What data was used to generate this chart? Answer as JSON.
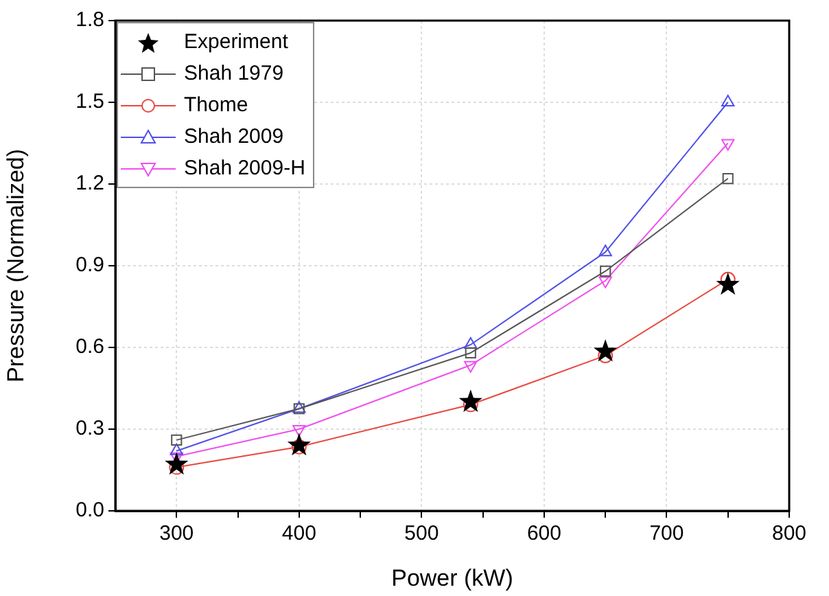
{
  "chart_data": {
    "type": "line",
    "xlabel": "Power (kW)",
    "ylabel": "Pressure (Normalized)",
    "x": [
      300,
      400,
      540,
      650,
      750
    ],
    "series": [
      {
        "name": "Experiment",
        "type": "scatter",
        "color": "#000000",
        "marker": "star",
        "values": [
          0.17,
          0.24,
          0.4,
          0.585,
          0.83
        ]
      },
      {
        "name": "Shah 1979",
        "color": "#555555",
        "marker": "square",
        "values": [
          0.26,
          0.375,
          0.58,
          0.88,
          1.22
        ]
      },
      {
        "name": "Thome",
        "color": "#e8483e",
        "marker": "circle",
        "values": [
          0.16,
          0.235,
          0.39,
          0.57,
          0.85
        ]
      },
      {
        "name": "Shah 2009",
        "color": "#5050e8",
        "marker": "triangle",
        "values": [
          0.22,
          0.375,
          0.61,
          0.95,
          1.5
        ]
      },
      {
        "name": "Shah 2009-H",
        "color": "#ee50ee",
        "marker": "triangle-down",
        "values": [
          0.2,
          0.3,
          0.535,
          0.845,
          1.35
        ]
      }
    ],
    "xlim": [
      250,
      800
    ],
    "xticks": [
      300,
      {
        "value": 350,
        "label": null
      },
      400,
      {
        "value": 450,
        "label": null
      },
      500,
      {
        "value": 550,
        "label": null
      },
      600,
      {
        "value": 650,
        "label": null
      },
      700,
      {
        "value": 750,
        "label": null
      },
      800
    ],
    "ylim": [
      0,
      1.8
    ],
    "yticks": [
      {
        "value": 0,
        "label": "0.0"
      },
      0.3,
      0.6,
      0.9,
      1.2,
      1.5,
      1.8
    ],
    "grid": true,
    "legend": "top left",
    "line_style": "solid"
  }
}
